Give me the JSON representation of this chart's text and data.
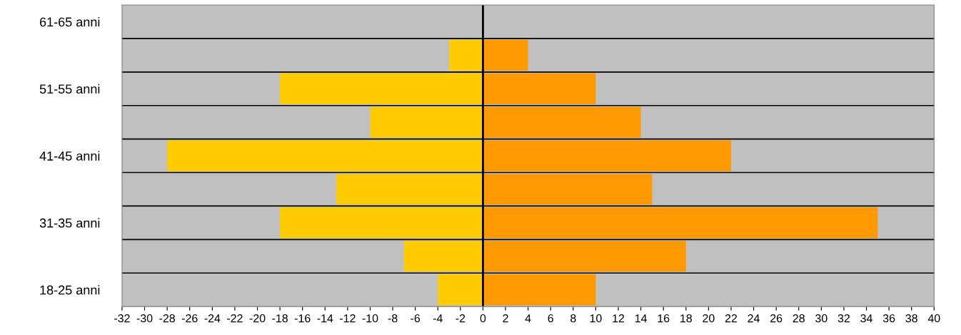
{
  "chart_data": {
    "type": "bar",
    "orientation": "horizontal",
    "stacked": true,
    "categories": [
      "61-65 anni",
      null,
      "51-55 anni",
      null,
      "41-45 anni",
      null,
      "31-35 anni",
      null,
      "18-25 anni"
    ],
    "series": [
      {
        "color": "#ffcc00",
        "values": [
          0,
          -3,
          -18,
          -10,
          -28,
          -13,
          -18,
          -7,
          -4
        ]
      },
      {
        "color": "#ff9900",
        "values": [
          0,
          4,
          10,
          14,
          22,
          15,
          35,
          18,
          10
        ]
      }
    ],
    "xlim": [
      -32,
      40
    ],
    "xticks": [
      -32,
      -30,
      -28,
      -26,
      -24,
      -22,
      -20,
      -18,
      -16,
      -14,
      -12,
      -10,
      -8,
      -6,
      -4,
      -2,
      0,
      2,
      4,
      6,
      8,
      10,
      12,
      14,
      16,
      18,
      20,
      22,
      24,
      26,
      28,
      30,
      32,
      34,
      36,
      38,
      40
    ],
    "grid": "y",
    "legend": false
  }
}
